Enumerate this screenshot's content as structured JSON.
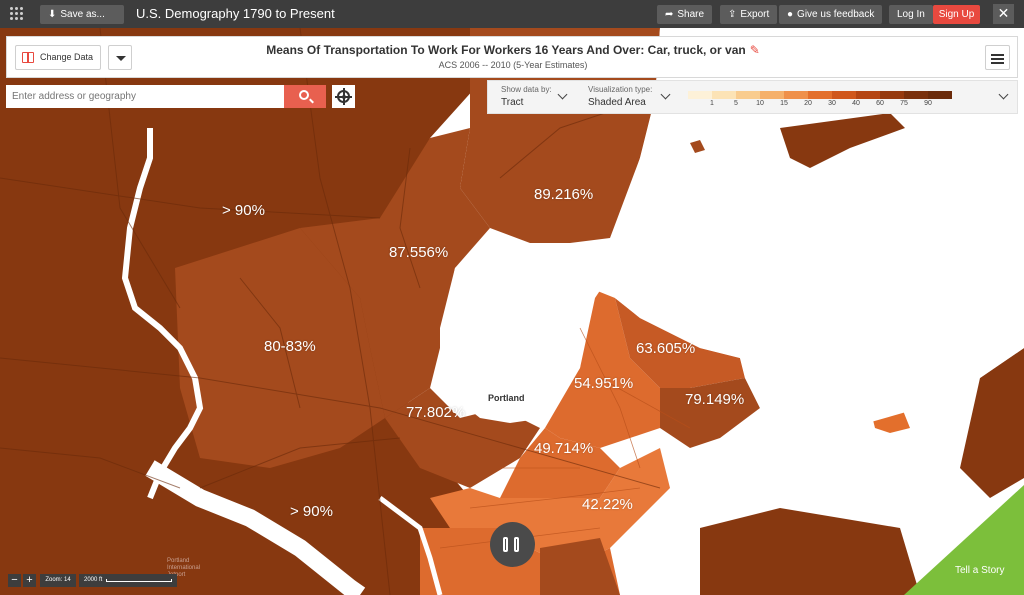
{
  "topbar": {
    "save_label": "Save as...",
    "app_title": "U.S. Demography 1790 to Present",
    "share_label": "Share",
    "export_label": "Export",
    "feedback_label": "Give us feedback",
    "login_label": "Log In",
    "signup_label": "Sign Up",
    "close_glyph": "✕"
  },
  "header": {
    "change_data_label": "Change Data",
    "title": "Means Of Transportation To Work For Workers 16 Years And Over: Car, truck, or van",
    "subtitle": "ACS 2006 -- 2010 (5-Year Estimates)",
    "edit_glyph": "✎"
  },
  "search": {
    "placeholder": "Enter address or geography"
  },
  "controls": {
    "show_data_label": "Show data by:",
    "show_data_value": "Tract",
    "viz_type_label": "Visualization type:",
    "viz_type_value": "Shaded Area"
  },
  "legend": {
    "colors": [
      "#fdf1d8",
      "#fce3b6",
      "#f9cc8f",
      "#f5b06b",
      "#ef904a",
      "#e36f2c",
      "#d0571c",
      "#b54513",
      "#963a0f",
      "#7a300c",
      "#6a2a0a"
    ],
    "ticks": [
      "1",
      "5",
      "10",
      "15",
      "20",
      "30",
      "40",
      "60",
      "75",
      "90"
    ]
  },
  "map": {
    "labels": [
      {
        "name": "tract-label-northwest",
        "text": "> 90%"
      },
      {
        "name": "tract-label-north",
        "text": "89.216%"
      },
      {
        "name": "tract-label-north-central",
        "text": "87.556%"
      },
      {
        "name": "tract-label-west",
        "text": "80-83%"
      },
      {
        "name": "tract-label-east-hill",
        "text": "63.605%"
      },
      {
        "name": "tract-label-east-central",
        "text": "54.951%"
      },
      {
        "name": "tract-label-far-east",
        "text": "79.149%"
      },
      {
        "name": "tract-label-central",
        "text": "77.802%"
      },
      {
        "name": "tract-label-downtown",
        "text": "49.714%"
      },
      {
        "name": "tract-label-south",
        "text": "42.22%"
      },
      {
        "name": "tract-label-southwest",
        "text": "> 90%"
      }
    ],
    "city_label": "Portland",
    "airport_label": [
      "Portland",
      "International",
      "Jetport"
    ],
    "zoom_label": "Zoom: 14",
    "scale_label": "2000 ft",
    "zoom_out": "−",
    "zoom_in": "+",
    "tell_story_label": "Tell a Story",
    "colors": {
      "dark": "#873810",
      "mid": "#a44a1d",
      "light": "#c65a25",
      "bright": "#dd6b2e",
      "brightest": "#e8793a"
    }
  }
}
